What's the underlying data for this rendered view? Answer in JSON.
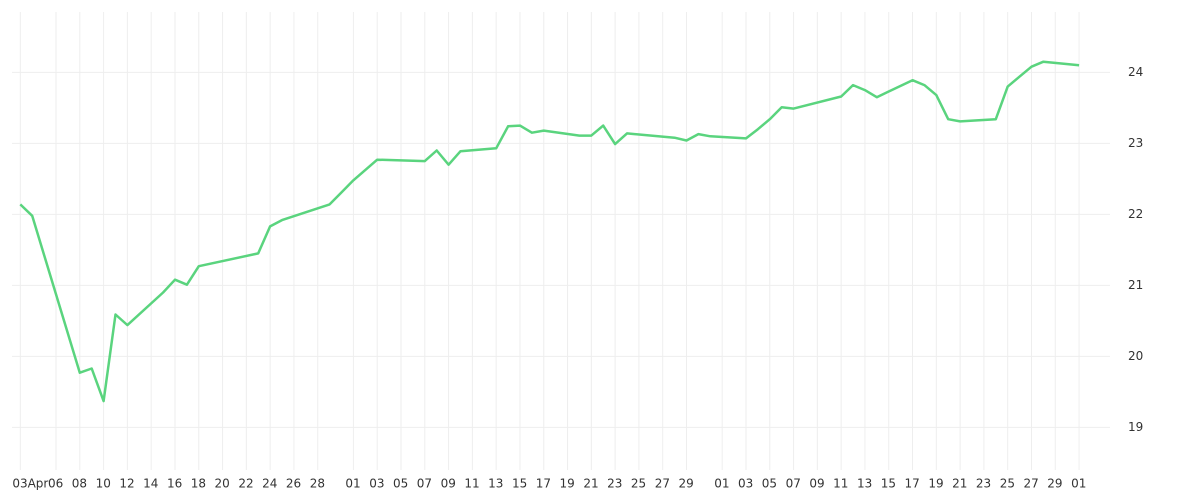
{
  "chart_data": {
    "type": "line",
    "x": [
      0,
      1,
      5,
      6,
      7,
      8,
      9,
      12,
      13,
      14,
      15,
      20,
      21,
      22,
      26,
      27,
      28,
      30,
      34,
      35,
      36,
      37,
      40,
      41,
      42,
      43,
      44,
      47,
      48,
      49,
      50,
      51,
      55,
      56,
      57,
      58,
      61,
      62,
      63,
      64,
      65,
      69,
      70,
      71,
      72,
      75,
      76,
      77,
      78,
      79,
      82,
      83,
      84,
      85,
      86,
      89
    ],
    "values": [
      22.14,
      21.98,
      19.77,
      19.83,
      19.37,
      20.59,
      20.44,
      20.9,
      21.08,
      21.01,
      21.27,
      21.45,
      21.83,
      21.92,
      22.14,
      22.31,
      22.48,
      22.77,
      22.75,
      22.9,
      22.7,
      22.89,
      22.93,
      23.24,
      23.25,
      23.15,
      23.18,
      23.11,
      23.11,
      23.25,
      22.99,
      23.14,
      23.08,
      23.04,
      23.13,
      23.1,
      23.07,
      23.2,
      23.34,
      23.51,
      23.49,
      23.66,
      23.82,
      23.75,
      23.65,
      23.89,
      23.82,
      23.68,
      23.34,
      23.31,
      23.34,
      23.8,
      23.94,
      24.08,
      24.15,
      24.1
    ],
    "color": "#5ad47e",
    "xlim": [
      -0.7,
      91.6
    ],
    "ylim": [
      18.4,
      24.85
    ],
    "xticks": [
      {
        "value": 0,
        "label": "03Apr"
      },
      {
        "value": 3,
        "label": "06"
      },
      {
        "value": 5,
        "label": "08"
      },
      {
        "value": 7,
        "label": "10"
      },
      {
        "value": 9,
        "label": "12"
      },
      {
        "value": 11,
        "label": "14"
      },
      {
        "value": 13,
        "label": "16"
      },
      {
        "value": 15,
        "label": "18"
      },
      {
        "value": 17,
        "label": "20"
      },
      {
        "value": 19,
        "label": "22"
      },
      {
        "value": 21,
        "label": "24"
      },
      {
        "value": 23,
        "label": "26"
      },
      {
        "value": 25,
        "label": "28"
      },
      {
        "value": 28,
        "label": "01"
      },
      {
        "value": 30,
        "label": "03"
      },
      {
        "value": 32,
        "label": "05"
      },
      {
        "value": 34,
        "label": "07"
      },
      {
        "value": 36,
        "label": "09"
      },
      {
        "value": 38,
        "label": "11"
      },
      {
        "value": 40,
        "label": "13"
      },
      {
        "value": 42,
        "label": "15"
      },
      {
        "value": 44,
        "label": "17"
      },
      {
        "value": 46,
        "label": "19"
      },
      {
        "value": 48,
        "label": "21"
      },
      {
        "value": 50,
        "label": "23"
      },
      {
        "value": 52,
        "label": "25"
      },
      {
        "value": 54,
        "label": "27"
      },
      {
        "value": 56,
        "label": "29"
      },
      {
        "value": 59,
        "label": "01"
      },
      {
        "value": 61,
        "label": "03"
      },
      {
        "value": 63,
        "label": "05"
      },
      {
        "value": 65,
        "label": "07"
      },
      {
        "value": 67,
        "label": "09"
      },
      {
        "value": 69,
        "label": "11"
      },
      {
        "value": 71,
        "label": "13"
      },
      {
        "value": 73,
        "label": "15"
      },
      {
        "value": 75,
        "label": "17"
      },
      {
        "value": 77,
        "label": "19"
      },
      {
        "value": 79,
        "label": "21"
      },
      {
        "value": 81,
        "label": "23"
      },
      {
        "value": 83,
        "label": "25"
      },
      {
        "value": 85,
        "label": "27"
      },
      {
        "value": 87,
        "label": "29"
      },
      {
        "value": 89,
        "label": "01"
      }
    ],
    "yticks": [
      19,
      20,
      21,
      22,
      23,
      24
    ],
    "grid": true
  }
}
